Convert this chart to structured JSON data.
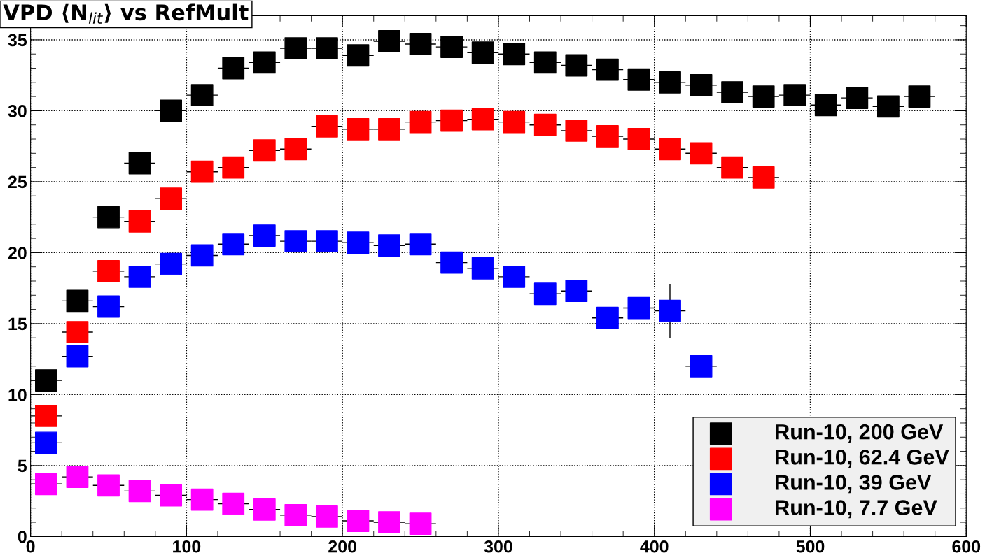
{
  "chart_data": {
    "type": "scatter",
    "title": "VPD ⟨N$_{lit}$⟩ vs RefMult",
    "series": [
      {
        "name": "Run-10, 200 GeV",
        "color": "#000000",
        "x": [
          10,
          30,
          50,
          70,
          90,
          110,
          130,
          150,
          170,
          190,
          210,
          230,
          250,
          270,
          290,
          310,
          330,
          350,
          370,
          390,
          410,
          430,
          450,
          470,
          490,
          510,
          530,
          550,
          570
        ],
        "values": [
          11.0,
          16.6,
          22.5,
          26.3,
          30.0,
          31.1,
          33.0,
          33.4,
          34.4,
          34.4,
          33.9,
          34.9,
          34.7,
          34.5,
          34.1,
          34.0,
          33.4,
          33.2,
          32.9,
          32.2,
          32.0,
          31.8,
          31.3,
          31.0,
          31.1,
          30.4,
          30.9,
          30.3,
          31.0
        ],
        "xerrors": [
          10,
          10,
          10,
          10,
          10,
          10,
          10,
          10,
          10,
          10,
          10,
          10,
          10,
          10,
          10,
          10,
          10,
          10,
          10,
          10,
          10,
          10,
          10,
          10,
          10,
          10,
          10,
          10,
          10
        ]
      },
      {
        "name": "Run-10, 62.4 GeV",
        "color": "#ff0000",
        "x": [
          10,
          30,
          50,
          70,
          90,
          110,
          130,
          150,
          170,
          190,
          210,
          230,
          250,
          270,
          290,
          310,
          330,
          350,
          370,
          390,
          410,
          430,
          450,
          470
        ],
        "values": [
          8.5,
          14.4,
          18.7,
          22.2,
          23.8,
          25.7,
          26.0,
          27.2,
          27.3,
          28.9,
          28.7,
          28.7,
          29.2,
          29.3,
          29.4,
          29.2,
          29.0,
          28.6,
          28.2,
          28.0,
          27.3,
          27.0,
          26.0,
          25.3
        ],
        "xerrors": [
          10,
          10,
          10,
          10,
          10,
          10,
          10,
          10,
          10,
          10,
          10,
          10,
          10,
          10,
          10,
          10,
          10,
          10,
          10,
          10,
          10,
          10,
          10,
          10
        ]
      },
      {
        "name": "Run-10, 39 GeV",
        "color": "#0000ff",
        "x": [
          10,
          30,
          50,
          70,
          90,
          110,
          130,
          150,
          170,
          190,
          210,
          230,
          250,
          270,
          290,
          310,
          330,
          350,
          370,
          390,
          410,
          430
        ],
        "values": [
          6.6,
          12.7,
          16.2,
          18.3,
          19.2,
          19.8,
          20.6,
          21.2,
          20.8,
          20.8,
          20.7,
          20.5,
          20.6,
          19.3,
          18.9,
          18.3,
          17.1,
          17.3,
          15.4,
          16.1,
          15.9,
          12.0
        ],
        "xerrors": [
          10,
          10,
          10,
          10,
          10,
          10,
          10,
          10,
          10,
          10,
          10,
          10,
          10,
          10,
          10,
          10,
          10,
          10,
          10,
          10,
          10,
          10
        ],
        "errors": [
          null,
          null,
          null,
          null,
          null,
          null,
          null,
          null,
          null,
          null,
          null,
          null,
          null,
          null,
          null,
          null,
          null,
          null,
          null,
          null,
          1.9,
          null
        ]
      },
      {
        "name": "Run-10, 7.7 GeV",
        "color": "#ff00ff",
        "x": [
          10,
          30,
          50,
          70,
          90,
          110,
          130,
          150,
          170,
          190,
          210,
          230,
          250
        ],
        "values": [
          3.7,
          4.2,
          3.6,
          3.2,
          2.9,
          2.6,
          2.3,
          1.9,
          1.5,
          1.4,
          1.1,
          1.0,
          0.9
        ],
        "xerrors": [
          10,
          10,
          10,
          10,
          10,
          10,
          10,
          10,
          10,
          10,
          10,
          10,
          10
        ]
      }
    ],
    "xlim": [
      0,
      600
    ],
    "xticks": [
      0,
      100,
      200,
      300,
      400,
      500,
      600
    ],
    "ylim": [
      0,
      36.7
    ],
    "yticks": [
      0,
      5,
      10,
      15,
      20,
      25,
      30,
      35
    ],
    "grid": true,
    "legend": "bottom right",
    "marker": "square"
  }
}
